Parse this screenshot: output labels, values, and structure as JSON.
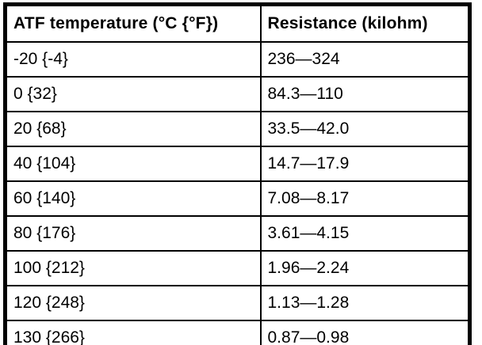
{
  "table": {
    "headers": {
      "temperature": "ATF temperature (°C {°F})",
      "resistance": "Resistance (kilohm)"
    },
    "rows": [
      {
        "temp": "-20 {-4}",
        "resistance": "236—324"
      },
      {
        "temp": "0 {32}",
        "resistance": "84.3—110"
      },
      {
        "temp": "20 {68}",
        "resistance": "33.5—42.0"
      },
      {
        "temp": "40 {104}",
        "resistance": "14.7—17.9"
      },
      {
        "temp": "60 {140}",
        "resistance": "7.08—8.17"
      },
      {
        "temp": "80 {176}",
        "resistance": "3.61—4.15"
      },
      {
        "temp": "100 {212}",
        "resistance": "1.96—2.24"
      },
      {
        "temp": "120 {248}",
        "resistance": "1.13—1.28"
      },
      {
        "temp": "130 {266}",
        "resistance": "0.87—0.98"
      }
    ],
    "colors": {
      "border": "#000000",
      "background": "#ffffff",
      "text": "#000000"
    }
  },
  "chart_data": {
    "type": "table",
    "title": "",
    "columns": [
      "ATF temperature (°C {°F})",
      "Resistance (kilohm)"
    ],
    "rows": [
      [
        "-20 {-4}",
        "236—324"
      ],
      [
        "0 {32}",
        "84.3—110"
      ],
      [
        "20 {68}",
        "33.5—42.0"
      ],
      [
        "40 {104}",
        "14.7—17.9"
      ],
      [
        "60 {140}",
        "7.08—8.17"
      ],
      [
        "80 {176}",
        "3.61—4.15"
      ],
      [
        "100 {212}",
        "1.96—2.24"
      ],
      [
        "120 {248}",
        "1.13—1.28"
      ],
      [
        "130 {266}",
        "0.87—0.98"
      ]
    ],
    "temperature_c": [
      -20,
      0,
      20,
      40,
      60,
      80,
      100,
      120,
      130
    ],
    "temperature_f": [
      -4,
      32,
      68,
      104,
      140,
      176,
      212,
      248,
      266
    ],
    "resistance_min_kilohm": [
      236,
      84.3,
      33.5,
      14.7,
      7.08,
      3.61,
      1.96,
      1.13,
      0.87
    ],
    "resistance_max_kilohm": [
      324,
      110,
      42.0,
      17.9,
      8.17,
      4.15,
      2.24,
      1.28,
      0.98
    ]
  }
}
